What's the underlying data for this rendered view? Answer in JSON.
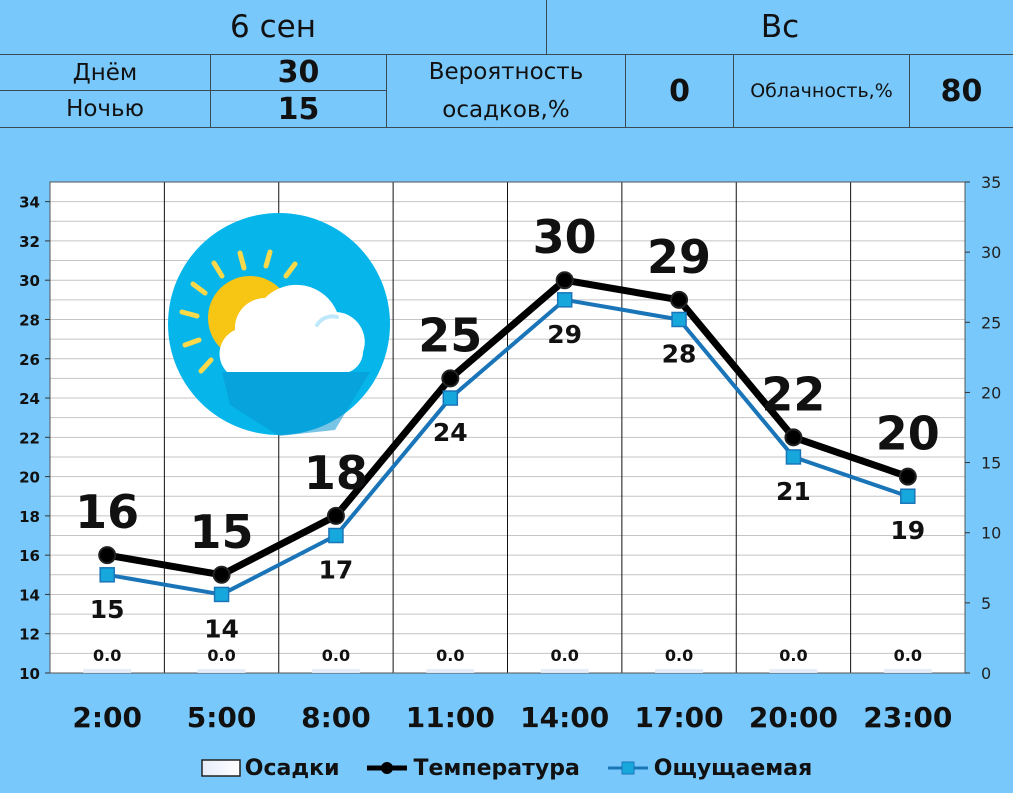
{
  "header": {
    "date": "6 сен",
    "weekday": "Вс",
    "day_label": "Днём",
    "day_value": "30",
    "night_label": "Ночью",
    "night_value": "15",
    "precip_label_line1": "Вероятность",
    "precip_label_line2": "осадков,%",
    "precip_value": "0",
    "cloud_label": "Облачность,%",
    "cloud_value": "80"
  },
  "colors": {
    "background": "#79c8fb",
    "temperature": "#000000",
    "feels_like": "#1a75b8",
    "feels_marker": "#16a8dc"
  },
  "chart_data": {
    "type": "line",
    "categories": [
      "2:00",
      "5:00",
      "8:00",
      "11:00",
      "14:00",
      "17:00",
      "20:00",
      "23:00"
    ],
    "series": [
      {
        "name": "Осадки",
        "type": "bar",
        "axis": "right",
        "values": [
          0.0,
          0.0,
          0.0,
          0.0,
          0.0,
          0.0,
          0.0,
          0.0
        ],
        "labels": [
          "0.0",
          "0.0",
          "0.0",
          "0.0",
          "0.0",
          "0.0",
          "0.0",
          "0.0"
        ]
      },
      {
        "name": "Температура",
        "type": "line",
        "axis": "left",
        "values": [
          16,
          15,
          18,
          25,
          30,
          29,
          22,
          20
        ]
      },
      {
        "name": "Ощущаемая",
        "type": "line",
        "axis": "left",
        "values": [
          15,
          14,
          17,
          24,
          29,
          28,
          21,
          19
        ]
      }
    ],
    "y_left": {
      "min": 10,
      "max": 35,
      "ticks": [
        10,
        12,
        14,
        16,
        18,
        20,
        22,
        24,
        26,
        28,
        30,
        32,
        34
      ]
    },
    "y_right": {
      "min": 0,
      "max": 35,
      "ticks": [
        0,
        5,
        10,
        15,
        20,
        25,
        30,
        35
      ]
    },
    "grid": true,
    "legend_position": "bottom",
    "weather_icon": "partly-cloudy-icon"
  }
}
